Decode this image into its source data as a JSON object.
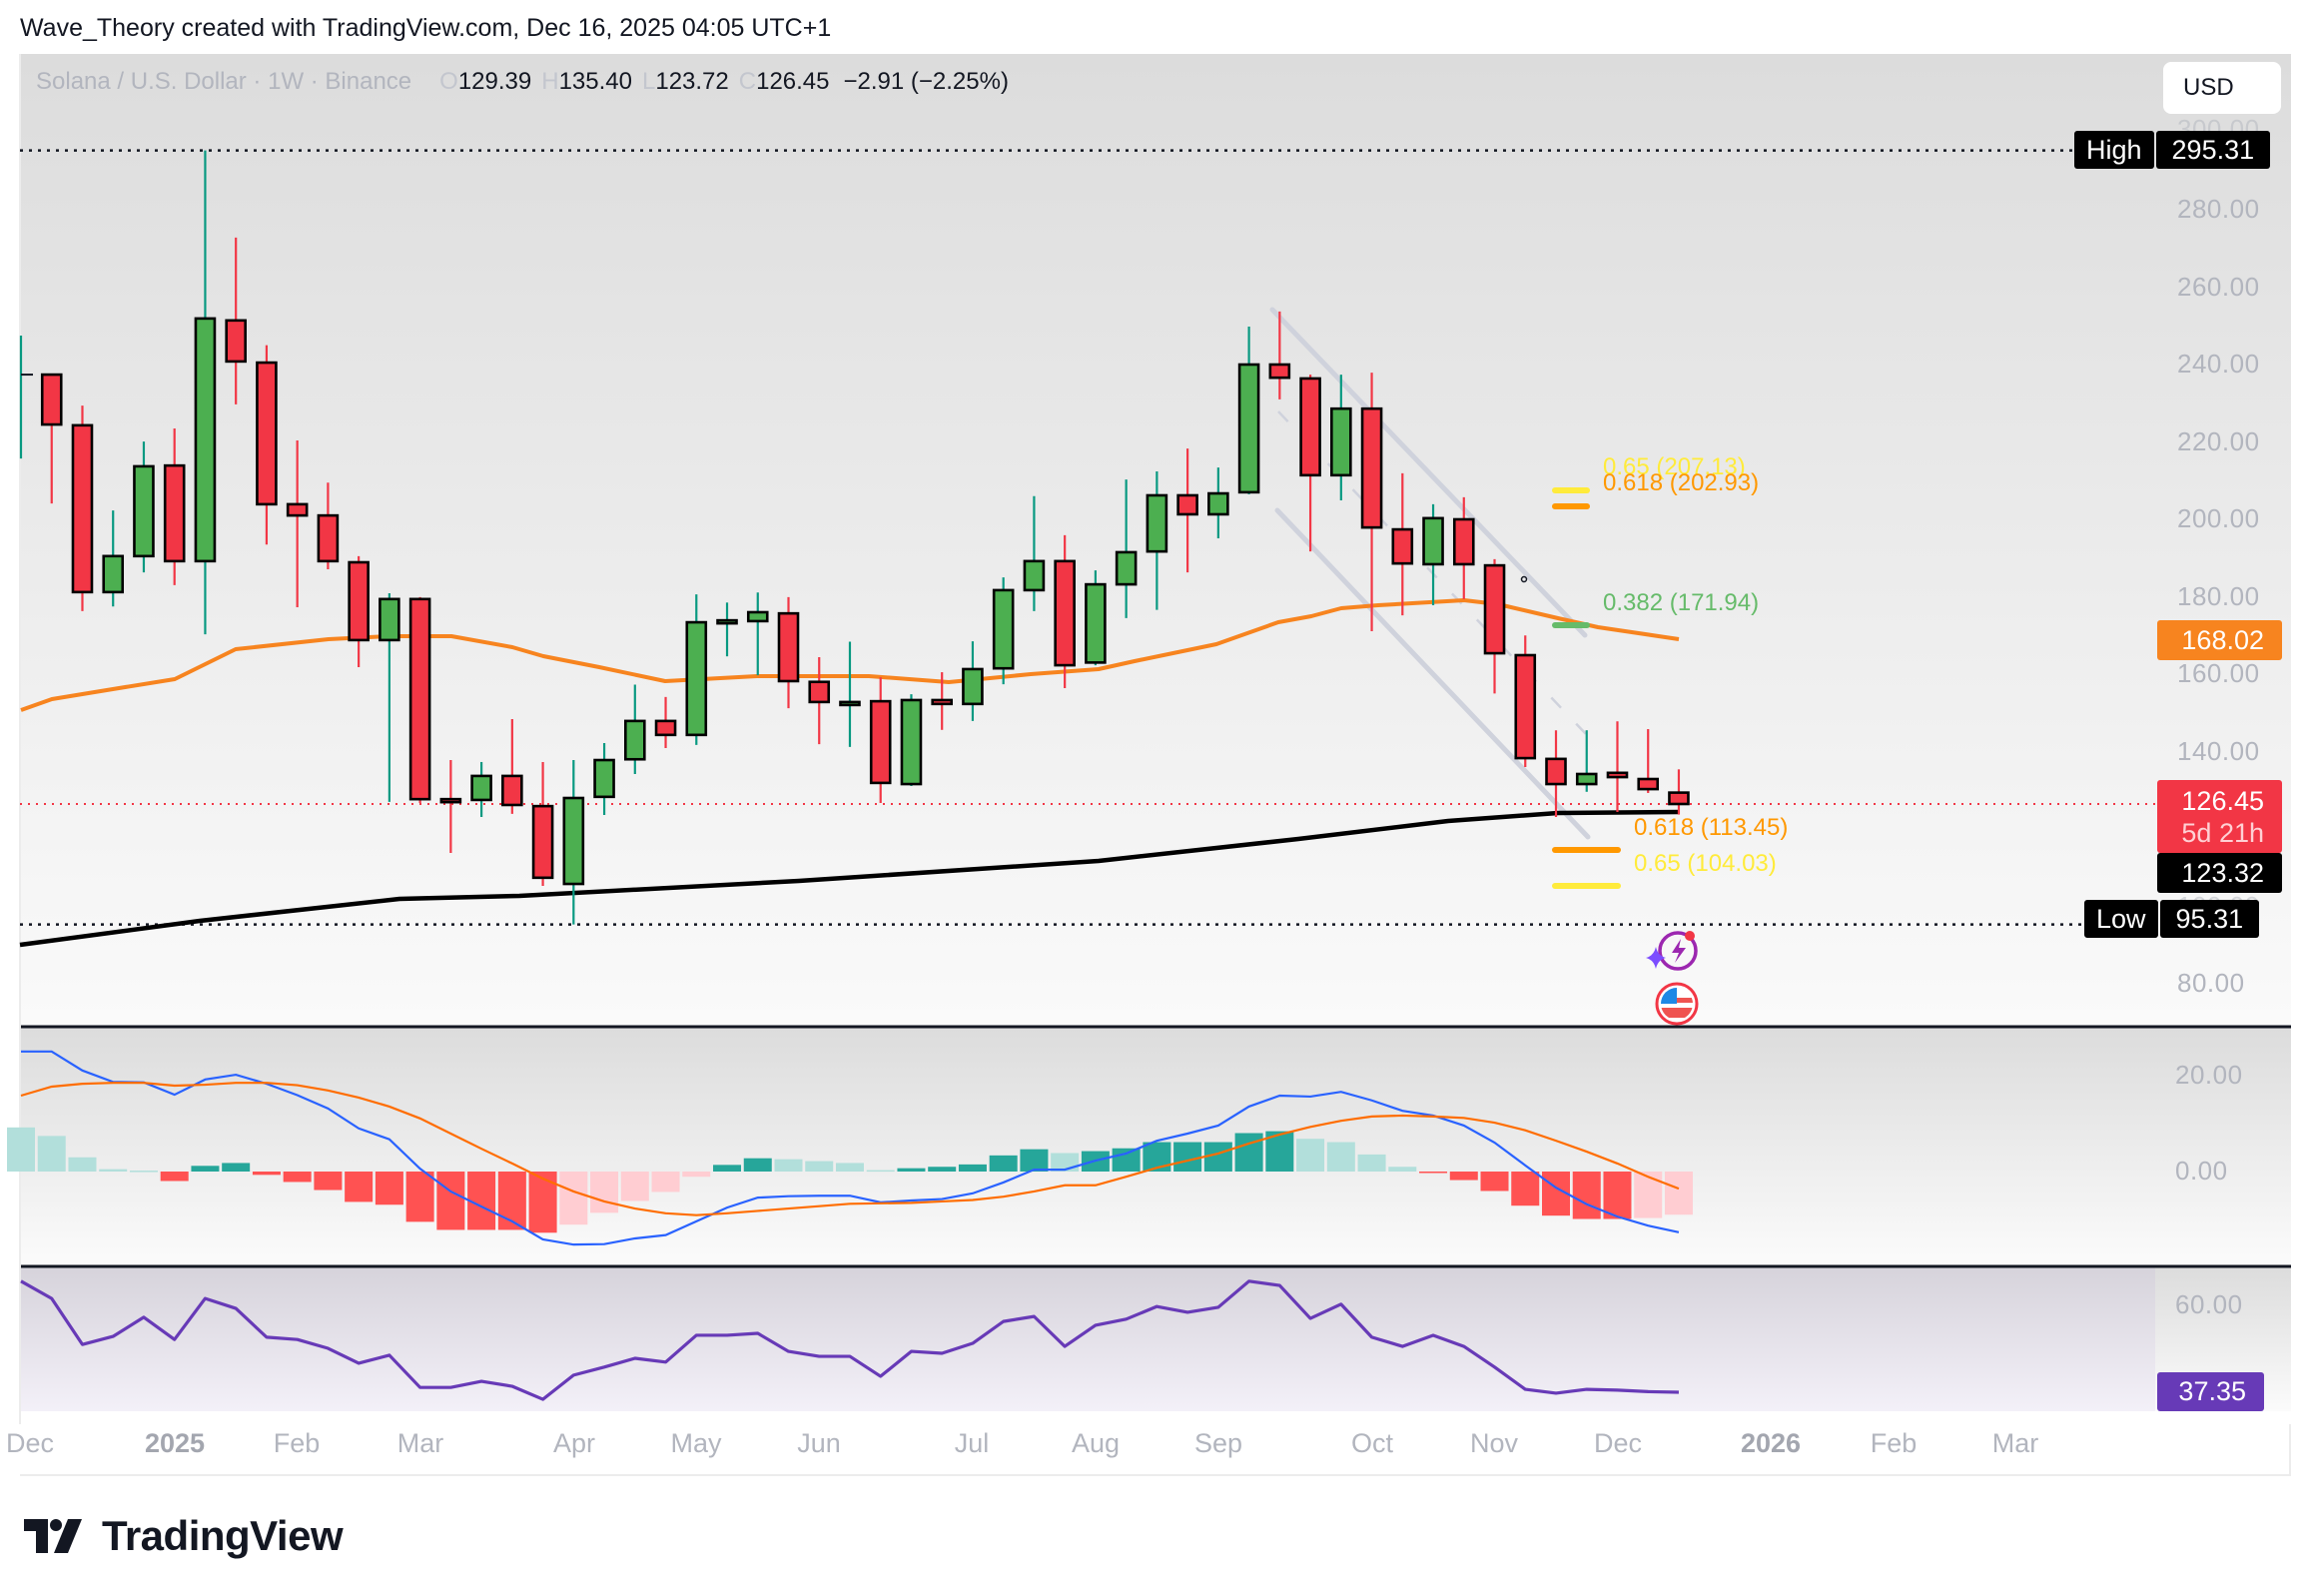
{
  "credit": "Wave_Theory created with TradingView.com, Dec 16, 2025 04:05 UTC+1",
  "legend": {
    "symbol": "Solana / U.S. Dollar · 1W · Binance",
    "o_key": "O",
    "o_val": "129.39",
    "h_key": "H",
    "h_val": "135.40",
    "l_key": "L",
    "l_val": "123.72",
    "c_key": "C",
    "c_val": "126.45",
    "change": "−2.91 (−2.25%)"
  },
  "currency_button": "USD",
  "price_axis": {
    "ticks": [
      "300.00",
      "280.00",
      "260.00",
      "240.00",
      "220.00",
      "200.00",
      "180.00",
      "160.00",
      "140.00",
      "120.00",
      "100.00",
      "80.00"
    ],
    "high_label": "High",
    "high_value": "295.31",
    "low_label": "Low",
    "low_value": "95.31",
    "ma50_value": "168.02",
    "last_price": "126.45",
    "countdown": "5d 21h",
    "ma200_value": "123.32"
  },
  "macd_axis": {
    "ticks": [
      "20.00",
      "0.00"
    ]
  },
  "rsi_axis": {
    "ticks": [
      "60.00"
    ],
    "value": "37.35"
  },
  "time_axis": [
    "Dec",
    "2025",
    "Feb",
    "Mar",
    "Apr",
    "May",
    "Jun",
    "Jul",
    "Aug",
    "Sep",
    "Oct",
    "Nov",
    "Dec",
    "2026",
    "Feb",
    "Mar"
  ],
  "fib_labels": {
    "upper_065": "0.65 (207.13)",
    "upper_0618": "0.618 (202.93)",
    "upper_0382": "0.382 (171.94)",
    "lower_0618": "0.618 (113.45)",
    "lower_065": "0.65 (104.03)"
  },
  "brand": "TradingView",
  "colors": {
    "up": "#4caf50",
    "down": "#f23645",
    "up_wick": "#089981",
    "ma50": "#f7841f",
    "ma200": "#000000",
    "macd": "#2962ff",
    "signal": "#ff6d00",
    "hist_up_strong": "#26a69a",
    "hist_up_weak": "#b2dfdb",
    "hist_down_strong": "#ff5252",
    "hist_down_weak": "#ffcdd2",
    "rsi": "#673ab7",
    "fib_yellow": "#ffeb3b",
    "fib_orange": "#ff9800",
    "fib_green": "#66bb6a"
  },
  "chart_data": {
    "type": "candlestick",
    "title": "Solana / U.S. Dollar · 1W · Binance",
    "ylabel": "USD",
    "ylim": [
      75,
      305
    ],
    "annotations": [
      "High 295.31",
      "Low 95.31",
      "Fib 0.65 (207.13)",
      "Fib 0.618 (202.93)",
      "Fib 0.382 (171.94)",
      "Fib 0.618 (113.45)",
      "Fib 0.65 (104.03)",
      "Descending channel"
    ],
    "candles": [
      [
        230.0,
        247.5,
        215.7,
        237.4
      ],
      [
        237.4,
        237.4,
        204.1,
        224.5
      ],
      [
        224.3,
        229.4,
        176.3,
        181.2
      ],
      [
        181.2,
        202.3,
        177.5,
        190.5
      ],
      [
        190.5,
        220.1,
        186.3,
        213.7
      ],
      [
        213.9,
        223.5,
        183.0,
        189.2
      ],
      [
        189.2,
        295.31,
        170.3,
        251.9
      ],
      [
        251.4,
        272.8,
        229.7,
        240.8
      ],
      [
        240.5,
        245.0,
        193.5,
        203.9
      ],
      [
        203.9,
        220.4,
        177.3,
        201.0
      ],
      [
        201.0,
        209.5,
        187.1,
        189.2
      ],
      [
        188.9,
        190.5,
        161.8,
        168.8
      ],
      [
        168.8,
        180.9,
        127.0,
        179.4
      ],
      [
        179.4,
        179.9,
        126.7,
        127.7
      ],
      [
        127.7,
        137.8,
        113.8,
        127.5
      ],
      [
        127.5,
        137.3,
        123.1,
        133.7
      ],
      [
        133.7,
        148.4,
        123.9,
        126.2
      ],
      [
        125.9,
        137.3,
        105.3,
        107.4
      ],
      [
        105.8,
        137.8,
        95.31,
        128.0
      ],
      [
        128.3,
        142.2,
        123.6,
        137.8
      ],
      [
        138.0,
        157.3,
        134.2,
        147.9
      ],
      [
        147.9,
        154.1,
        140.9,
        144.3
      ],
      [
        144.3,
        180.6,
        141.7,
        173.4
      ],
      [
        173.4,
        178.5,
        164.6,
        173.9
      ],
      [
        173.7,
        181.1,
        159.7,
        176.0
      ],
      [
        175.7,
        179.9,
        151.2,
        158.2
      ],
      [
        158.0,
        164.4,
        141.9,
        152.8
      ],
      [
        152.8,
        168.4,
        141.2,
        152.8
      ],
      [
        153.0,
        159.2,
        126.7,
        131.9
      ],
      [
        131.6,
        154.8,
        131.1,
        153.3
      ],
      [
        153.3,
        160.5,
        145.6,
        152.3
      ],
      [
        152.3,
        168.5,
        147.9,
        161.3
      ],
      [
        161.5,
        185.0,
        157.4,
        181.7
      ],
      [
        181.7,
        206.0,
        176.3,
        189.2
      ],
      [
        189.2,
        195.9,
        156.4,
        162.3
      ],
      [
        163.0,
        186.8,
        162.3,
        183.2
      ],
      [
        183.2,
        210.3,
        174.5,
        191.5
      ],
      [
        191.7,
        212.4,
        176.6,
        206.2
      ],
      [
        206.2,
        218.3,
        186.3,
        201.3
      ],
      [
        201.3,
        213.4,
        195.1,
        206.7
      ],
      [
        207.0,
        249.8,
        206.5,
        240.0
      ],
      [
        240.0,
        253.7,
        231.0,
        236.6
      ],
      [
        236.4,
        237.4,
        191.7,
        211.4
      ],
      [
        211.4,
        237.4,
        204.9,
        228.6
      ],
      [
        228.6,
        237.9,
        171.1,
        197.9
      ],
      [
        197.4,
        211.9,
        175.2,
        188.6
      ],
      [
        188.4,
        203.9,
        177.8,
        200.3
      ],
      [
        200.0,
        205.7,
        179.4,
        188.4
      ],
      [
        188.1,
        189.7,
        155.0,
        165.4
      ],
      [
        164.9,
        170.0,
        136.0,
        138.3
      ],
      [
        138.1,
        145.5,
        123.1,
        131.6
      ],
      [
        131.6,
        145.5,
        129.6,
        134.2
      ],
      [
        134.5,
        147.8,
        124.4,
        133.4
      ],
      [
        132.9,
        145.8,
        129.3,
        130.3
      ],
      [
        129.39,
        135.4,
        123.72,
        126.45
      ]
    ],
    "ma50_y": [
      [
        21,
        711
      ],
      [
        52,
        700
      ],
      [
        113,
        690
      ],
      [
        175,
        680
      ],
      [
        236,
        650
      ],
      [
        329,
        640
      ],
      [
        390,
        637
      ],
      [
        452,
        637
      ],
      [
        513,
        648
      ],
      [
        544,
        657
      ],
      [
        600,
        668
      ],
      [
        666,
        682
      ],
      [
        758,
        677
      ],
      [
        870,
        677
      ],
      [
        950,
        683
      ],
      [
        1032,
        675
      ],
      [
        1100,
        670
      ],
      [
        1136,
        662
      ],
      [
        1218,
        645
      ],
      [
        1280,
        623
      ],
      [
        1313,
        617
      ],
      [
        1343,
        609
      ],
      [
        1380,
        606
      ],
      [
        1466,
        601
      ],
      [
        1500,
        605
      ],
      [
        1560,
        619
      ],
      [
        1600,
        628
      ],
      [
        1681,
        640
      ]
    ],
    "ma200_y": [
      [
        20,
        946
      ],
      [
        200,
        922
      ],
      [
        400,
        900
      ],
      [
        520,
        897
      ],
      [
        800,
        882
      ],
      [
        1100,
        862
      ],
      [
        1300,
        840
      ],
      [
        1450,
        822
      ],
      [
        1560,
        814
      ],
      [
        1681,
        813
      ]
    ],
    "macd": {
      "histogram": [
        9.3,
        7.5,
        3.0,
        0.5,
        0.2,
        -2.0,
        1.2,
        1.8,
        -0.7,
        -2.2,
        -3.9,
        -6.4,
        -7.0,
        -10.6,
        -12.3,
        -12.3,
        -12.3,
        -12.9,
        -11.2,
        -8.7,
        -6.2,
        -4.3,
        -1.1,
        1.4,
        2.8,
        2.6,
        2.2,
        1.8,
        0.3,
        0.7,
        1.0,
        1.5,
        3.4,
        4.7,
        3.9,
        4.3,
        4.9,
        6.2,
        6.2,
        6.2,
        8.1,
        8.5,
        6.9,
        6.2,
        3.6,
        1.0,
        -0.1,
        -1.8,
        -4.1,
        -7.2,
        -9.3,
        -10.0,
        -10.0,
        -9.8,
        -9.1
      ],
      "macd_line": [
        25.3,
        25.3,
        21.3,
        18.9,
        18.8,
        16.2,
        19.4,
        20.4,
        18.5,
        16.1,
        13.3,
        9.1,
        6.8,
        0.6,
        -4.2,
        -7.4,
        -10.5,
        -14.3,
        -15.4,
        -15.3,
        -14.1,
        -13.4,
        -10.5,
        -7.6,
        -5.5,
        -5.2,
        -5.1,
        -5.1,
        -6.5,
        -6.1,
        -5.8,
        -4.6,
        -2.3,
        0.4,
        0.4,
        2.3,
        3.8,
        6.5,
        8.0,
        9.7,
        13.7,
        16.0,
        15.8,
        16.8,
        15.0,
        12.8,
        11.8,
        9.7,
        6.1,
        1.3,
        -3.4,
        -6.9,
        -9.5,
        -11.4,
        -12.8
      ],
      "signal_line": [
        16.0,
        17.9,
        18.5,
        18.7,
        18.7,
        18.1,
        18.3,
        18.7,
        18.7,
        18.2,
        17.1,
        15.6,
        13.7,
        11.2,
        8.0,
        4.8,
        1.7,
        -1.5,
        -4.2,
        -6.3,
        -7.8,
        -8.8,
        -9.2,
        -8.8,
        -8.3,
        -7.8,
        -7.3,
        -6.8,
        -6.7,
        -6.6,
        -6.3,
        -6.0,
        -5.3,
        -4.2,
        -2.9,
        -2.9,
        -1.1,
        0.8,
        2.3,
        3.8,
        5.9,
        7.8,
        9.4,
        10.7,
        11.6,
        11.8,
        11.6,
        11.3,
        10.3,
        8.7,
        6.5,
        4.2,
        1.7,
        -1.1,
        -3.6
      ]
    },
    "rsi": [
      66.3,
      61.8,
      49.8,
      51.9,
      56.9,
      51.1,
      61.8,
      59.2,
      51.7,
      51.1,
      48.8,
      44.9,
      47.0,
      38.6,
      38.6,
      40.2,
      38.9,
      35.5,
      41.8,
      43.9,
      46.2,
      45.2,
      52.2,
      52.2,
      52.7,
      48.0,
      46.7,
      46.7,
      41.5,
      48.0,
      47.5,
      50.1,
      55.8,
      57.1,
      49.3,
      54.8,
      56.4,
      59.7,
      58.2,
      59.5,
      66.3,
      65.2,
      56.6,
      60.3,
      51.7,
      49.3,
      52.2,
      49.3,
      43.9,
      38.1,
      37.1,
      38.1,
      37.9,
      37.5,
      37.35
    ]
  }
}
